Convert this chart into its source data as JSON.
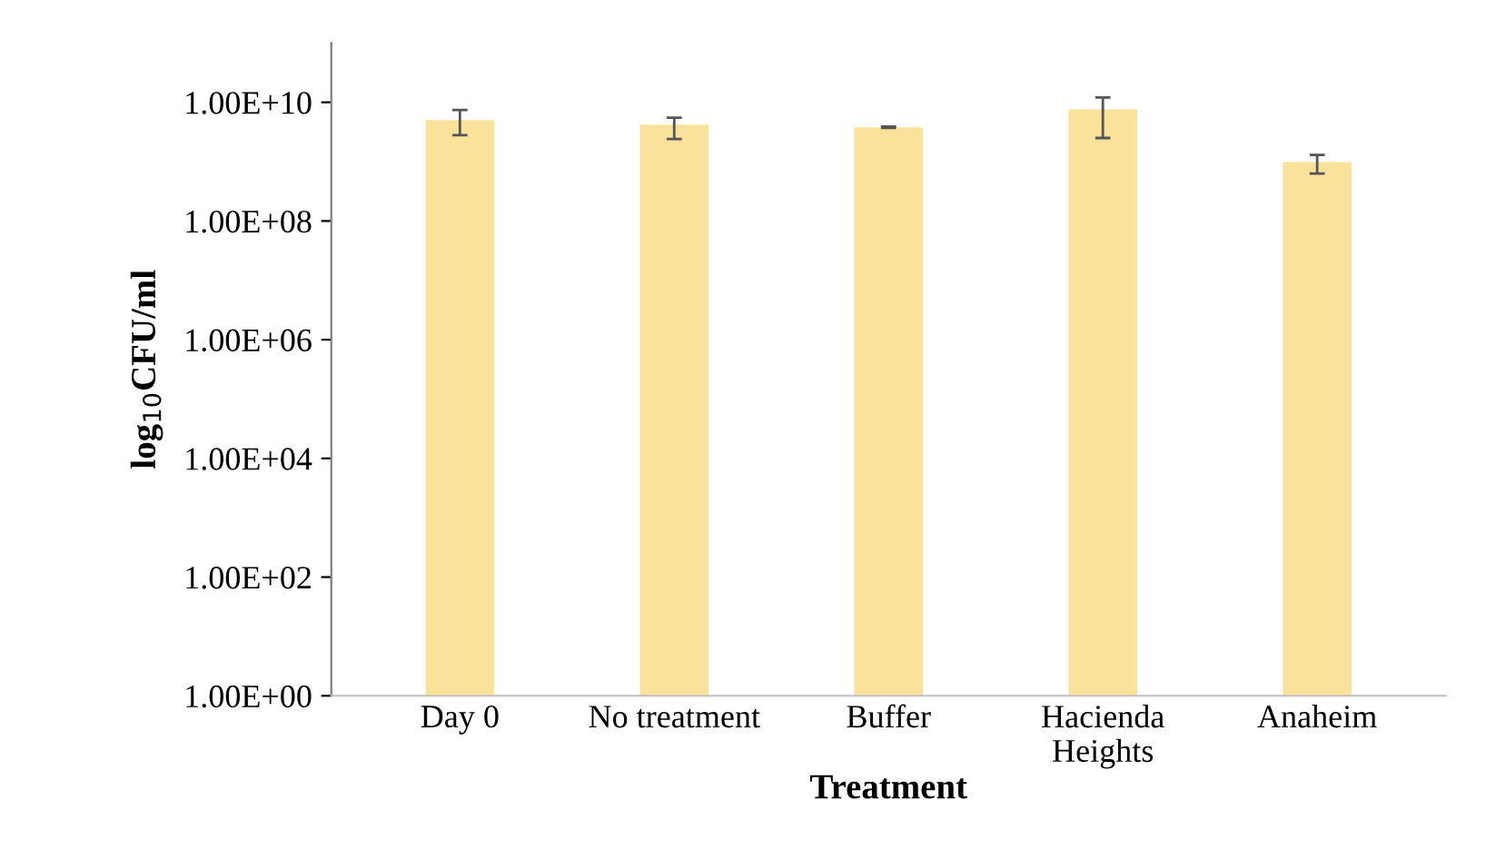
{
  "chart_data": {
    "type": "bar",
    "xlabel": "Treatment",
    "ylabel": "log$_{10}$CFU/ml",
    "categories": [
      "Day 0",
      "No treatment",
      "Buffer",
      "Hacienda\nHeights",
      "Anaheim"
    ],
    "values": [
      5000000000.0,
      4200000000.0,
      3800000000.0,
      7600000000.0,
      980000000.0
    ],
    "errors": [
      [
        2800000000.0,
        7400000000.0
      ],
      [
        2400000000.0,
        5500000000.0
      ],
      [
        3700000000.0,
        3900000000.0
      ],
      [
        2500000000.0,
        12000000000.0
      ],
      [
        630000000.0,
        1300000000.0
      ]
    ],
    "color": "#fbe29b",
    "log": "y",
    "ylim": [
      1,
      100000000000.0
    ],
    "yticks": [
      {
        "value": 1,
        "label": "1.00E+00"
      },
      {
        "value": 100,
        "label": "1.00E+02"
      },
      {
        "value": 10000,
        "label": "1.00E+04"
      },
      {
        "value": 1000000,
        "label": "1.00E+06"
      },
      {
        "value": 100000000,
        "label": "1.00E+08"
      },
      {
        "value": 10000000000,
        "label": "1.00E+10"
      }
    ],
    "grid": false
  }
}
